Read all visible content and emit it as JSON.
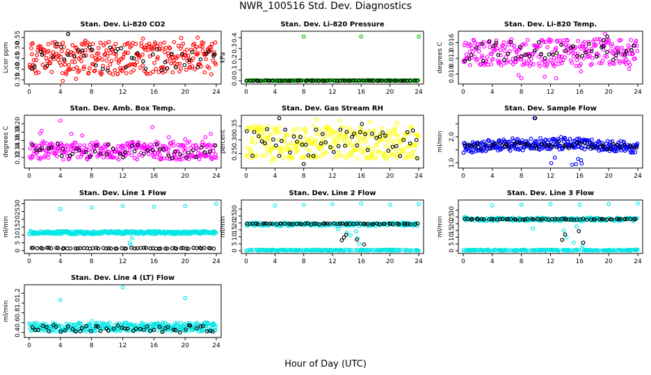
{
  "page": {
    "title": "NWR_100516  Std. Dev. Diagnostics",
    "xlabel": "Hour of Day (UTC)"
  },
  "chart_data": [
    {
      "type": "scatter",
      "title": "Stan. Dev. Li-820 CO2",
      "ylabel": "Licor ppm",
      "color": "#ff0000",
      "xlim": [
        0,
        24
      ],
      "ylim": [
        0.34,
        0.57
      ],
      "xticks": [
        0,
        4,
        8,
        12,
        16,
        20,
        24
      ],
      "yticks": [
        0.35,
        0.4,
        0.45,
        0.5,
        0.55
      ],
      "ytick_labels": [
        "0.35",
        "0.40",
        "0.45",
        "0.50",
        "0.55"
      ],
      "pattern": {
        "kind": "band",
        "lo": 0.375,
        "hi": 0.53,
        "n": 300,
        "seed": 11
      },
      "black": {
        "kind": "band",
        "lo": 0.39,
        "hi": 0.52,
        "n": 45,
        "seed": 12
      },
      "points": [
        [
          0.3,
          0.52
        ],
        [
          5.0,
          0.567
        ],
        [
          7.2,
          0.535
        ],
        [
          14.6,
          0.545
        ],
        [
          19.5,
          0.548
        ],
        [
          21.6,
          0.55
        ],
        [
          4.3,
          0.345
        ],
        [
          6.0,
          0.355
        ]
      ],
      "black_points": [
        [
          5.0,
          0.567
        ],
        [
          23.8,
          0.47
        ]
      ]
    },
    {
      "type": "scatter",
      "title": "Stan. Dev. Li-820 Pressure",
      "ylabel": "kPa",
      "color": "#00bb00",
      "xlim": [
        0,
        24
      ],
      "ylim": [
        -0.01,
        0.44
      ],
      "xticks": [
        0,
        4,
        8,
        12,
        16,
        20,
        24
      ],
      "yticks": [
        0.0,
        0.1,
        0.2,
        0.3,
        0.4
      ],
      "ytick_labels": [
        "0.0",
        "0.1",
        "0.2",
        "0.3",
        "0.4"
      ],
      "pattern": {
        "kind": "band",
        "lo": 0.0,
        "hi": 0.006,
        "n": 160,
        "seed": 21
      },
      "black": {
        "kind": "band",
        "lo": 0.0,
        "hi": 0.004,
        "n": 60,
        "seed": 22
      },
      "points": [
        [
          8.0,
          0.41
        ],
        [
          16.0,
          0.41
        ],
        [
          24.0,
          0.41
        ]
      ],
      "black_points": []
    },
    {
      "type": "scatter",
      "title": "Stan. Dev. Li-820 Temp.",
      "ylabel": "degrees C",
      "color": "#ff00ff",
      "xlim": [
        0,
        24
      ],
      "ylim": [
        0.0085,
        0.0178
      ],
      "xticks": [
        0,
        4,
        8,
        12,
        16,
        20,
        24
      ],
      "yticks": [
        0.01,
        0.013,
        0.016
      ],
      "ytick_labels": [
        "0.010",
        "0.013",
        "0.016"
      ],
      "pattern": {
        "kind": "band",
        "lo": 0.0115,
        "hi": 0.0167,
        "n": 280,
        "seed": 31
      },
      "black": {
        "kind": "band",
        "lo": 0.0125,
        "hi": 0.0163,
        "n": 45,
        "seed": 32
      },
      "points": [
        [
          7.6,
          0.0098
        ],
        [
          8.0,
          0.0092
        ],
        [
          11.2,
          0.0095
        ],
        [
          12.8,
          0.0092
        ],
        [
          19.5,
          0.0177
        ],
        [
          16.2,
          0.0105
        ],
        [
          22.8,
          0.011
        ]
      ],
      "black_points": [
        [
          19.8,
          0.0172
        ],
        [
          19.3,
          0.0165
        ]
      ]
    },
    {
      "type": "scatter",
      "title": "Stan. Dev. Amb. Box Temp.",
      "ylabel": "degrees C",
      "color": "#ff00ff",
      "xlim": [
        0,
        24
      ],
      "ylim": [
        0.1,
        0.215
      ],
      "xticks": [
        0,
        4,
        8,
        12,
        16,
        20,
        24
      ],
      "yticks": [
        0.12,
        0.14,
        0.16,
        0.18,
        0.2
      ],
      "ytick_labels": [
        "0.12",
        "0.14",
        "0.16",
        "0.18",
        "0.20"
      ],
      "pattern": {
        "kind": "band",
        "lo": 0.115,
        "hi": 0.158,
        "n": 300,
        "seed": 41
      },
      "black": {
        "kind": "band",
        "lo": 0.118,
        "hi": 0.152,
        "n": 45,
        "seed": 42
      },
      "points": [
        [
          1.6,
          0.183
        ],
        [
          1.4,
          0.177
        ],
        [
          4.0,
          0.207
        ],
        [
          5.4,
          0.176
        ],
        [
          6.8,
          0.172
        ],
        [
          15.8,
          0.192
        ],
        [
          17.9,
          0.168
        ],
        [
          20.0,
          0.163
        ],
        [
          23.3,
          0.176
        ],
        [
          22.6,
          0.168
        ]
      ],
      "black_points": []
    },
    {
      "type": "scatter",
      "title": "Stan. Dev. Gas Stream RH",
      "ylabel": "percent",
      "color": "#ffff00",
      "xlim": [
        0,
        24
      ],
      "ylim": [
        0.205,
        0.382
      ],
      "xticks": [
        0,
        4,
        8,
        12,
        16,
        20,
        24
      ],
      "yticks": [
        0.25,
        0.3,
        0.35
      ],
      "ytick_labels": [
        "0.25",
        "0.30",
        "0.35"
      ],
      "pattern": {
        "kind": "band",
        "lo": 0.23,
        "hi": 0.35,
        "n": 300,
        "seed": 51
      },
      "black": {
        "kind": "band",
        "lo": 0.24,
        "hi": 0.34,
        "n": 50,
        "seed": 52
      },
      "points": [
        [
          3.5,
          0.22
        ],
        [
          9.8,
          0.375
        ],
        [
          13.0,
          0.37
        ],
        [
          17.2,
          0.365
        ],
        [
          21.0,
          0.362
        ]
      ],
      "black_points": [
        [
          4.6,
          0.379
        ],
        [
          16.1,
          0.358
        ],
        [
          8.0,
          0.212
        ],
        [
          23.8,
          0.233
        ]
      ]
    },
    {
      "type": "scatter",
      "title": "Stan. Dev. Sample Flow",
      "ylabel": "ml/min",
      "color": "#0000ff",
      "xlim": [
        0,
        24
      ],
      "ylim": [
        0.88,
        2.75
      ],
      "xticks": [
        0,
        4,
        8,
        12,
        16,
        20,
        24
      ],
      "yticks": [
        1.0,
        1.5,
        2.0,
        2.5
      ],
      "ytick_labels": [
        "1.0",
        "",
        "2.0",
        ""
      ],
      "pattern": {
        "kind": "hump",
        "lo": 1.35,
        "hi": 1.78,
        "amp": 0.22,
        "n": 320,
        "seed": 61
      },
      "black": {
        "kind": "hump",
        "lo": 1.45,
        "hi": 1.7,
        "amp": 0.15,
        "n": 50,
        "seed": 62
      },
      "points": [
        [
          9.8,
          2.72
        ],
        [
          12.1,
          0.99
        ],
        [
          15.0,
          0.93
        ],
        [
          15.5,
          0.95
        ],
        [
          16.3,
          0.97
        ],
        [
          15.8,
          1.15
        ],
        [
          12.6,
          1.2
        ],
        [
          16.2,
          1.1
        ]
      ],
      "black_points": [
        [
          9.9,
          2.72
        ]
      ]
    },
    {
      "type": "scatter",
      "title": "Stan. Dev. Line 1 Flow",
      "ylabel": "ml/min",
      "color": "#00e5e5",
      "xlim": [
        0,
        24
      ],
      "ylim": [
        -0.5,
        31
      ],
      "xticks": [
        0,
        4,
        8,
        12,
        16,
        20,
        24
      ],
      "yticks": [
        0,
        5,
        10,
        15,
        20,
        25,
        30
      ],
      "ytick_labels": [
        "0",
        "5",
        "10",
        "15",
        "20",
        "25",
        "30"
      ],
      "pattern": {
        "kind": "band",
        "lo": 10.5,
        "hi": 12.5,
        "n": 320,
        "seed": 71
      },
      "black": {
        "kind": "line",
        "y": 1.5,
        "n": 60,
        "seed": 72
      },
      "points": [
        [
          4.0,
          26.5
        ],
        [
          8.0,
          27.5
        ],
        [
          12.0,
          28.5
        ],
        [
          16.0,
          28.0
        ],
        [
          20.0,
          28.5
        ],
        [
          24.0,
          30.0
        ],
        [
          13.2,
          8.0
        ],
        [
          12.9,
          5.0
        ],
        [
          13.0,
          3.5
        ]
      ],
      "black_points": []
    },
    {
      "type": "scatter",
      "title": "Stan. Dev. Line 2 Flow",
      "ylabel": "ml/min",
      "color": "#00e5e5",
      "xlim": [
        0,
        24
      ],
      "ylim": [
        -0.5,
        35
      ],
      "xticks": [
        0,
        4,
        8,
        12,
        16,
        20,
        24
      ],
      "yticks": [
        0,
        5,
        10,
        15,
        20,
        25,
        30
      ],
      "ytick_labels": [
        "0",
        "5",
        "10",
        "15",
        "20",
        "25",
        "30"
      ],
      "pattern": {
        "kind": "twoband",
        "lo": 17.8,
        "hi": 20.2,
        "lo2": 0.0,
        "hi2": 0.8,
        "n": 380,
        "seed": 81
      },
      "black": {
        "kind": "line",
        "y": 19.3,
        "n": 60,
        "seed": 82
      },
      "points": [
        [
          4.0,
          32.5
        ],
        [
          8.0,
          33.0
        ],
        [
          12.0,
          33.5
        ],
        [
          16.0,
          34.0
        ],
        [
          20.0,
          33.0
        ],
        [
          24.0,
          33.5
        ],
        [
          14.0,
          13.0
        ],
        [
          14.5,
          11.0
        ],
        [
          15.3,
          14.0
        ],
        [
          15.5,
          9.0
        ],
        [
          15.7,
          5.0
        ],
        [
          12.8,
          15.5
        ]
      ],
      "black_points": [
        [
          13.3,
          7.5
        ],
        [
          13.6,
          9.5
        ],
        [
          13.9,
          11.5
        ],
        [
          16.4,
          4.5
        ],
        [
          15.4,
          8.0
        ]
      ]
    },
    {
      "type": "scatter",
      "title": "Stan. Dev. Line 3 Flow",
      "ylabel": "ml/min",
      "color": "#00e5e5",
      "xlim": [
        0,
        24
      ],
      "ylim": [
        -0.5,
        36
      ],
      "xticks": [
        0,
        4,
        8,
        12,
        16,
        20,
        24
      ],
      "yticks": [
        0,
        5,
        10,
        15,
        20,
        25,
        30
      ],
      "ytick_labels": [
        "0",
        "5",
        "10",
        "15",
        "20",
        "25",
        "30"
      ],
      "pattern": {
        "kind": "twoband",
        "lo": 22.0,
        "hi": 24.5,
        "lo2": 0.0,
        "hi2": 0.8,
        "n": 380,
        "seed": 91
      },
      "black": {
        "kind": "line",
        "y": 23.3,
        "n": 60,
        "seed": 92
      },
      "points": [
        [
          4.0,
          33.5
        ],
        [
          8.0,
          34.0
        ],
        [
          12.0,
          34.5
        ],
        [
          16.0,
          34.0
        ],
        [
          20.0,
          34.5
        ],
        [
          24.0,
          35.0
        ],
        [
          9.6,
          16.5
        ],
        [
          13.8,
          15.0
        ],
        [
          14.2,
          10.0
        ],
        [
          15.6,
          18.0
        ],
        [
          15.2,
          6.0
        ],
        [
          16.4,
          3.5
        ],
        [
          0.2,
          25.0
        ]
      ],
      "black_points": [
        [
          13.6,
          8.0
        ],
        [
          14.0,
          12.0
        ],
        [
          16.5,
          6.0
        ],
        [
          15.9,
          14.5
        ]
      ]
    },
    {
      "type": "scatter",
      "title": "Stan. Dev. Line 4 (LT) Flow",
      "ylabel": "ml/min",
      "color": "#00e5e5",
      "xlim": [
        0,
        24
      ],
      "ylim": [
        0.34,
        1.33
      ],
      "xticks": [
        0,
        4,
        8,
        12,
        16,
        20,
        24
      ],
      "yticks": [
        0.4,
        0.6,
        0.8,
        1.0,
        1.2
      ],
      "ytick_labels": [
        "0.4",
        "0.6",
        "0.8",
        "1.0",
        "1.2"
      ],
      "pattern": {
        "kind": "band",
        "lo": 0.42,
        "hi": 0.6,
        "n": 320,
        "seed": 101
      },
      "black": {
        "kind": "band",
        "lo": 0.4,
        "hi": 0.55,
        "n": 50,
        "seed": 102
      },
      "points": [
        [
          4.0,
          1.06
        ],
        [
          12.0,
          1.32
        ],
        [
          20.0,
          1.1
        ],
        [
          8.0,
          0.63
        ]
      ],
      "black_points": []
    }
  ]
}
